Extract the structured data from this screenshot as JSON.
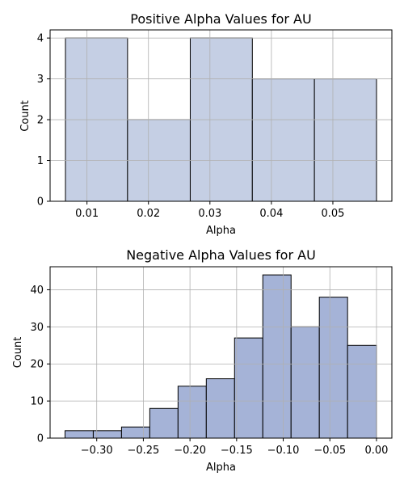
{
  "chart_data": [
    {
      "type": "bar",
      "title": "Positive Alpha Values for AU",
      "xlabel": "Alpha",
      "ylabel": "Count",
      "bin_edges": [
        0.0065,
        0.0166,
        0.0268,
        0.0369,
        0.047,
        0.0571
      ],
      "values": [
        4,
        2,
        4,
        3,
        3
      ],
      "xlim": [
        0.004,
        0.0596
      ],
      "ylim": [
        0,
        4.2
      ],
      "xticks": [
        0.01,
        0.02,
        0.03,
        0.04,
        0.05
      ],
      "xtick_labels": [
        "0.01",
        "0.02",
        "0.03",
        "0.04",
        "0.05"
      ],
      "yticks": [
        0,
        1,
        2,
        3,
        4
      ],
      "ytick_labels": [
        "0",
        "1",
        "2",
        "3",
        "4"
      ],
      "grid": true,
      "bar_color": "#c5cfe4"
    },
    {
      "type": "bar",
      "title": "Negative Alpha Values for AU",
      "xlabel": "Alpha",
      "ylabel": "Count",
      "bin_edges": [
        -0.334,
        -0.3037,
        -0.2734,
        -0.2431,
        -0.2128,
        -0.1825,
        -0.1522,
        -0.1219,
        -0.0916,
        -0.0613,
        -0.031,
        0.0
      ],
      "values": [
        2,
        2,
        3,
        8,
        14,
        16,
        27,
        44,
        30,
        38,
        25
      ],
      "xlim": [
        -0.35,
        0.0165
      ],
      "ylim": [
        0,
        46.2
      ],
      "xticks": [
        -0.3,
        -0.25,
        -0.2,
        -0.15,
        -0.1,
        -0.05,
        0.0
      ],
      "xtick_labels": [
        "−0.30",
        "−0.25",
        "−0.20",
        "−0.15",
        "−0.10",
        "−0.05",
        "0.00"
      ],
      "yticks": [
        0,
        10,
        20,
        30,
        40
      ],
      "ytick_labels": [
        "0",
        "10",
        "20",
        "30",
        "40"
      ],
      "grid": true,
      "bar_color": "#a5b3d7"
    }
  ]
}
